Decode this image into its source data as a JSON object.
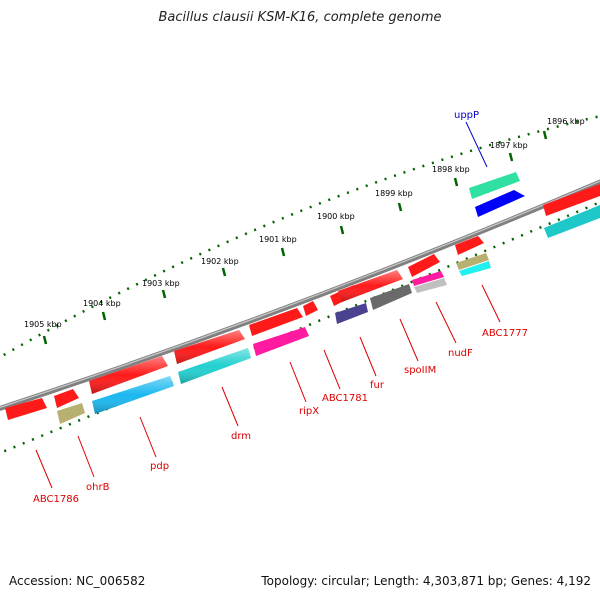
{
  "header": {
    "title": "Bacillus clausii KSM-K16, complete genome"
  },
  "footer": {
    "accession": "Accession: NC_006582",
    "summary": "Topology: circular; Length: 4,303,871 bp; Genes: 4,192"
  },
  "ruler": {
    "ticks": [
      "1896 kbp",
      "1897 kbp",
      "1898 kbp",
      "1899 kbp",
      "1900 kbp",
      "1901 kbp",
      "1902 kbp",
      "1903 kbp",
      "1904 kbp",
      "1905 kbp"
    ]
  },
  "genes": [
    {
      "label": "uppP",
      "color": "#0000cc"
    },
    {
      "label": "ABC1777",
      "color": "#dd0000"
    },
    {
      "label": "nudF",
      "color": "#dd0000"
    },
    {
      "label": "spoIIM",
      "color": "#dd0000"
    },
    {
      "label": "fur",
      "color": "#dd0000"
    },
    {
      "label": "ABC1781",
      "color": "#dd0000"
    },
    {
      "label": "ripX",
      "color": "#dd0000"
    },
    {
      "label": "drm",
      "color": "#dd0000"
    },
    {
      "label": "pdp",
      "color": "#dd0000"
    },
    {
      "label": "ohrB",
      "color": "#dd0000"
    },
    {
      "label": "ABC1786",
      "color": "#dd0000"
    }
  ],
  "palette": {
    "backbone": "#808080",
    "tick": "#006400",
    "red": "#ff1a1a",
    "cyan": "#1ec8c8",
    "teal": "#22d0d0",
    "sky": "#1ab8f0",
    "pink": "#ff1aa0",
    "olive": "#b8b070",
    "navy": "#4a4290",
    "grey": "#6a6a6a",
    "green": "#30e0a0",
    "blue": "#0000ff",
    "silver": "#c0c0c0",
    "aqua": "#20f0f0"
  }
}
